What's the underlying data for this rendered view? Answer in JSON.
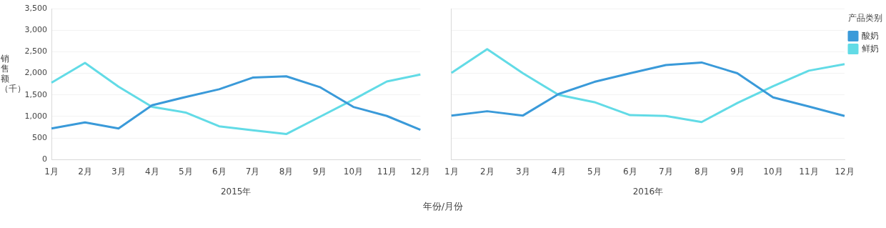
{
  "chart_data": [
    {
      "type": "line",
      "ylabel": "销售额（千）",
      "xlabel": "2015年",
      "categories": [
        "1月",
        "2月",
        "3月",
        "4月",
        "5月",
        "6月",
        "7月",
        "8月",
        "9月",
        "10月",
        "11月",
        "12月"
      ],
      "ylim": [
        0,
        3500
      ],
      "yticks": [
        0,
        500,
        {
          "value": 1000,
          "label": "1,000"
        },
        {
          "value": 1500,
          "label": "1,500"
        },
        {
          "value": 2000,
          "label": "2,000"
        },
        {
          "value": 2500,
          "label": "2,500"
        },
        {
          "value": 3000,
          "label": "3,000"
        },
        {
          "value": 3500,
          "label": "3,500"
        }
      ],
      "grid": "y",
      "legend": false,
      "annotations": [
        "年份/月份"
      ],
      "series": [
        {
          "color": "#3a9ad9",
          "values": [
            720,
            860,
            720,
            1260,
            1450,
            1630,
            1900,
            1930,
            1680,
            1220,
            1010,
            690
          ]
        },
        {
          "color": "#62dbe6",
          "values": [
            1780,
            2240,
            1690,
            1220,
            1090,
            770,
            680,
            590,
            990,
            1390,
            1810,
            1970
          ]
        }
      ]
    },
    {
      "type": "line",
      "xlabel": "2016年",
      "categories": [
        "1月",
        "2月",
        "3月",
        "4月",
        "5月",
        "6月",
        "7月",
        "8月",
        "9月",
        "10月",
        "11月",
        "12月"
      ],
      "ylim": [
        0,
        3500
      ],
      "yticks": [
        0,
        500,
        1000,
        1500,
        2000,
        2500,
        3000,
        3500
      ],
      "grid": "y",
      "tick_labels": "x",
      "legend": "right",
      "legend_title": "产品类别",
      "series": [
        {
          "name": "酸奶",
          "color": "#3a9ad9",
          "values": [
            1020,
            1120,
            1020,
            1520,
            1800,
            2000,
            2190,
            2250,
            2000,
            1440,
            1230,
            1010
          ]
        },
        {
          "name": "鲜奶",
          "color": "#62dbe6",
          "values": [
            2010,
            2560,
            2000,
            1500,
            1330,
            1030,
            1010,
            870,
            1310,
            1700,
            2060,
            2210
          ]
        }
      ]
    }
  ]
}
